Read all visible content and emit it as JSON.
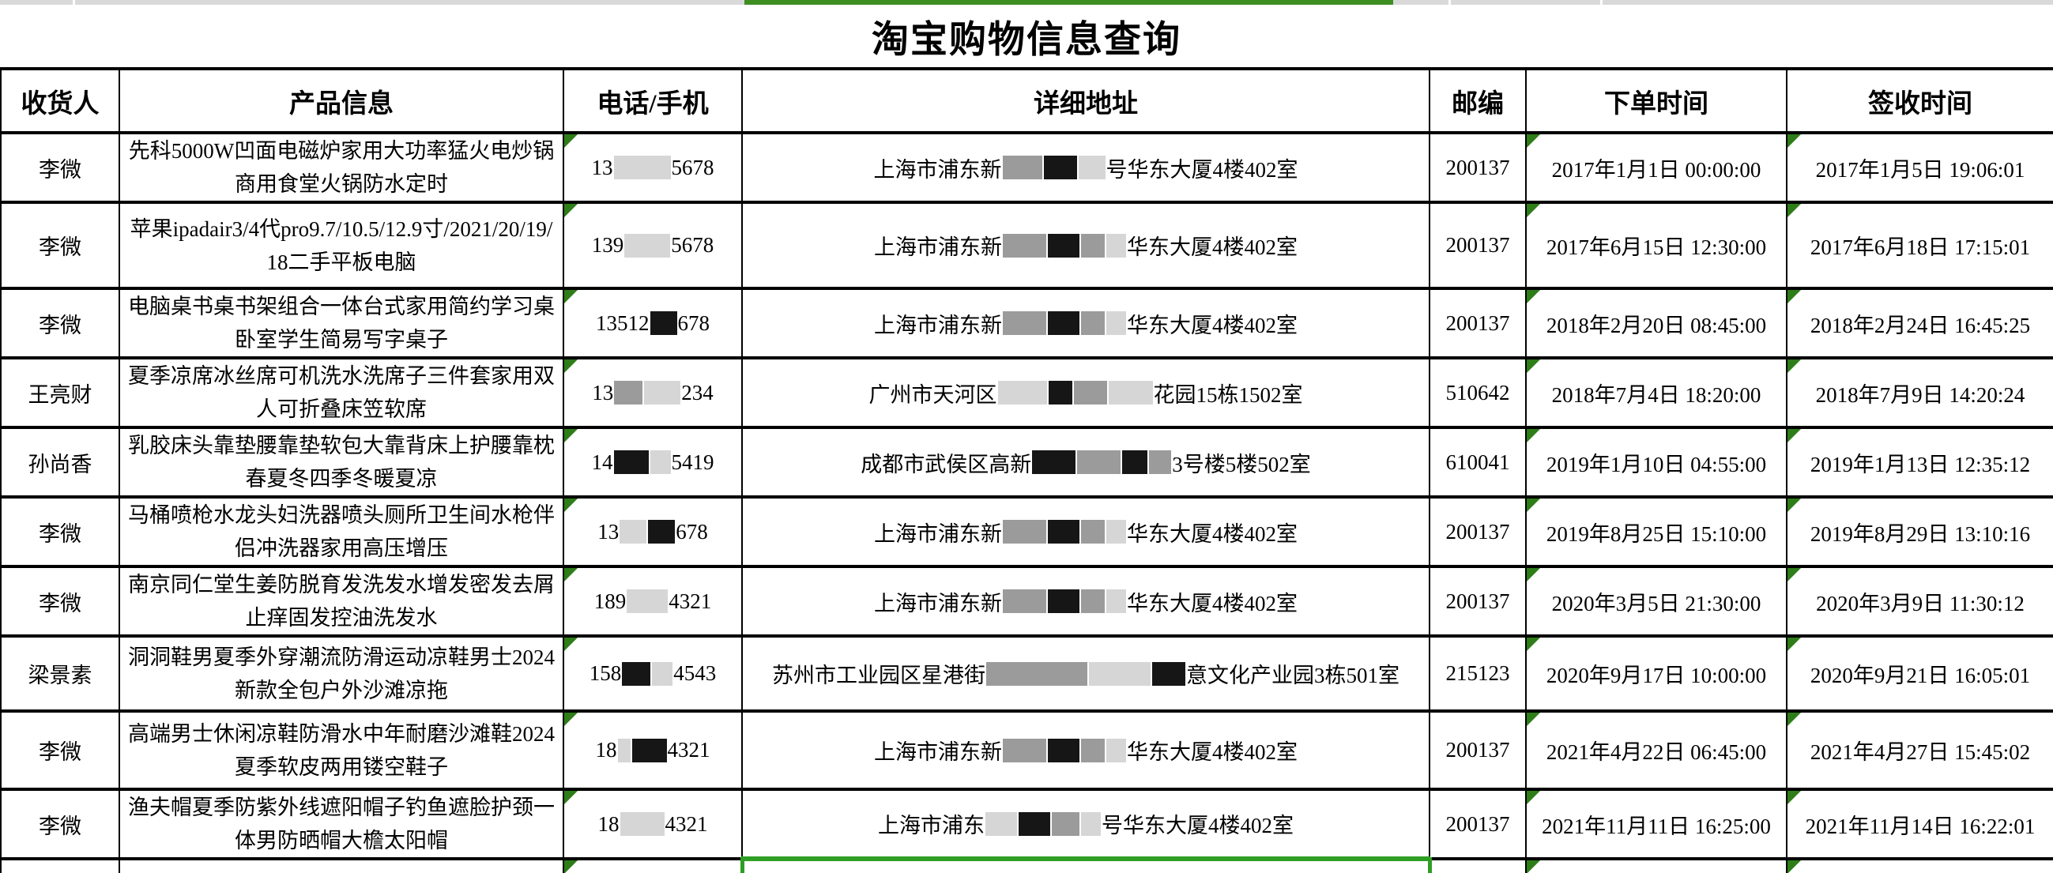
{
  "title": "淘宝购物信息查询",
  "colors": {
    "green_bar": "#3e8e22",
    "flag_green": "#2e7d19",
    "selection_green": "#2f9e25"
  },
  "header": {
    "recipient": "收货人",
    "product": "产品信息",
    "phone": "电话/手机",
    "address": "详细地址",
    "zip": "邮编",
    "order_time": "下单时间",
    "sign_time": "签收时间"
  },
  "rows": [
    {
      "recipient": "李微",
      "product": "先科5000W凹面电磁炉家用大功率猛火电炒锅商用食堂火锅防水定时",
      "phone": [
        {
          "t": "13"
        },
        {
          "r": "blur",
          "w": 72
        },
        {
          "t": "5678"
        }
      ],
      "address": [
        {
          "t": "上海市浦东新"
        },
        {
          "r": "gray",
          "w": 50
        },
        {
          "r": "black",
          "w": 42
        },
        {
          "r": "blur",
          "w": 34
        },
        {
          "t": "号华东大厦4楼402室"
        }
      ],
      "zip": "200137",
      "order_time": "2017年1月1日 00:00:00",
      "sign_time": "2017年1月5日 19:06:01"
    },
    {
      "recipient": "李微",
      "product": "苹果ipadair3/4代pro9.7/10.5/12.9寸/2021/20/19/18二手平板电脑",
      "phone": [
        {
          "t": "139"
        },
        {
          "r": "blur",
          "w": 58
        },
        {
          "t": "5678"
        }
      ],
      "address": [
        {
          "t": "上海市浦东新"
        },
        {
          "r": "gray",
          "w": 55
        },
        {
          "r": "black",
          "w": 40
        },
        {
          "r": "gray",
          "w": 30
        },
        {
          "r": "blur",
          "w": 25
        },
        {
          "t": "华东大厦4楼402室"
        }
      ],
      "zip": "200137",
      "order_time": "2017年6月15日 12:30:00",
      "sign_time": "2017年6月18日 17:15:01"
    },
    {
      "recipient": "李微",
      "product": "电脑桌书桌书架组合一体台式家用简约学习桌卧室学生简易写字桌子",
      "phone": [
        {
          "t": "13512"
        },
        {
          "r": "black",
          "w": 34
        },
        {
          "t": "678"
        }
      ],
      "address": [
        {
          "t": "上海市浦东新"
        },
        {
          "r": "gray",
          "w": 55
        },
        {
          "r": "black",
          "w": 40
        },
        {
          "r": "gray",
          "w": 30
        },
        {
          "r": "blur",
          "w": 25
        },
        {
          "t": "华东大厦4楼402室"
        }
      ],
      "zip": "200137",
      "order_time": "2018年2月20日 08:45:00",
      "sign_time": "2018年2月24日 16:45:25"
    },
    {
      "recipient": "王亮财",
      "product": "夏季凉席冰丝席可机洗水洗席子三件套家用双人可折叠床笠软席",
      "phone": [
        {
          "t": "13"
        },
        {
          "r": "gray",
          "w": 36
        },
        {
          "r": "blur",
          "w": 46
        },
        {
          "t": "234"
        }
      ],
      "address": [
        {
          "t": "广州市天河区"
        },
        {
          "r": "blur",
          "w": 62
        },
        {
          "r": "black",
          "w": 30
        },
        {
          "r": "gray",
          "w": 42
        },
        {
          "r": "blur",
          "w": 56
        },
        {
          "t": "花园15栋1502室"
        }
      ],
      "zip": "510642",
      "order_time": "2018年7月4日 18:20:00",
      "sign_time": "2018年7月9日 14:20:24"
    },
    {
      "recipient": "孙尚香",
      "product": "乳胶床头靠垫腰靠垫软包大靠背床上护腰靠枕春夏冬四季冬暖夏凉",
      "phone": [
        {
          "t": "14"
        },
        {
          "r": "black",
          "w": 44
        },
        {
          "r": "blur",
          "w": 26
        },
        {
          "t": "5419"
        }
      ],
      "address": [
        {
          "t": "成都市武侯区高新"
        },
        {
          "r": "black",
          "w": 55
        },
        {
          "r": "gray",
          "w": 55
        },
        {
          "r": "black",
          "w": 32
        },
        {
          "r": "gray",
          "w": 28
        },
        {
          "t": "3号楼5楼502室"
        }
      ],
      "zip": "610041",
      "order_time": "2019年1月10日 04:55:00",
      "sign_time": "2019年1月13日 12:35:12"
    },
    {
      "recipient": "李微",
      "product": "马桶喷枪水龙头妇洗器喷头厕所卫生间水枪伴侣冲洗器家用高压增压",
      "phone": [
        {
          "t": "13"
        },
        {
          "r": "blur",
          "w": 34
        },
        {
          "r": "black",
          "w": 34
        },
        {
          "t": "678"
        }
      ],
      "address": [
        {
          "t": "上海市浦东新"
        },
        {
          "r": "gray",
          "w": 55
        },
        {
          "r": "black",
          "w": 40
        },
        {
          "r": "gray",
          "w": 30
        },
        {
          "r": "blur",
          "w": 25
        },
        {
          "t": "华东大厦4楼402室"
        }
      ],
      "zip": "200137",
      "order_time": "2019年8月25日 15:10:00",
      "sign_time": "2019年8月29日 13:10:16"
    },
    {
      "recipient": "李微",
      "product": "南京同仁堂生姜防脱育发洗发水增发密发去屑止痒固发控油洗发水",
      "phone": [
        {
          "t": "189"
        },
        {
          "r": "blur",
          "w": 52
        },
        {
          "t": "4321"
        }
      ],
      "address": [
        {
          "t": "上海市浦东新"
        },
        {
          "r": "gray",
          "w": 55
        },
        {
          "r": "black",
          "w": 40
        },
        {
          "r": "gray",
          "w": 30
        },
        {
          "r": "blur",
          "w": 25
        },
        {
          "t": "华东大厦4楼402室"
        }
      ],
      "zip": "200137",
      "order_time": "2020年3月5日 21:30:00",
      "sign_time": "2020年3月9日 11:30:12"
    },
    {
      "recipient": "梁景素",
      "product": "洞洞鞋男夏季外穿潮流防滑运动凉鞋男士2024新款全包户外沙滩凉拖",
      "phone": [
        {
          "t": "158"
        },
        {
          "r": "black",
          "w": 36
        },
        {
          "r": "blur",
          "w": 26
        },
        {
          "t": "4543"
        }
      ],
      "address": [
        {
          "t": "苏州市工业园区星港街"
        },
        {
          "r": "gray",
          "w": 128
        },
        {
          "r": "blur",
          "w": 78
        },
        {
          "r": "black",
          "w": 42
        },
        {
          "t": "意文化产业园3栋501室"
        }
      ],
      "zip": "215123",
      "order_time": "2020年9月17日 10:00:00",
      "sign_time": "2020年9月21日 16:05:01"
    },
    {
      "recipient": "李微",
      "product": "高端男士休闲凉鞋防滑水中年耐磨沙滩鞋2024夏季软皮两用镂空鞋子",
      "phone": [
        {
          "t": "18"
        },
        {
          "r": "blur",
          "w": 16
        },
        {
          "r": "black",
          "w": 44
        },
        {
          "t": "4321"
        }
      ],
      "address": [
        {
          "t": "上海市浦东新"
        },
        {
          "r": "gray",
          "w": 55
        },
        {
          "r": "black",
          "w": 40
        },
        {
          "r": "gray",
          "w": 30
        },
        {
          "r": "blur",
          "w": 25
        },
        {
          "t": "华东大厦4楼402室"
        }
      ],
      "zip": "200137",
      "order_time": "2021年4月22日 06:45:00",
      "sign_time": "2021年4月27日 15:45:02"
    },
    {
      "recipient": "李微",
      "product": "渔夫帽夏季防紫外线遮阳帽子钓鱼遮脸护颈一体男防晒帽大檐太阳帽",
      "phone": [
        {
          "t": "18"
        },
        {
          "r": "blur",
          "w": 56
        },
        {
          "t": "4321"
        }
      ],
      "address": [
        {
          "t": "上海市浦东"
        },
        {
          "r": "blur",
          "w": 40
        },
        {
          "r": "black",
          "w": 40
        },
        {
          "r": "gray",
          "w": 35
        },
        {
          "r": "blur",
          "w": 25
        },
        {
          "t": "号华东大厦4楼402室"
        }
      ],
      "zip": "200137",
      "order_time": "2021年11月11日 16:25:00",
      "sign_time": "2021年11月14日 16:22:01"
    }
  ]
}
